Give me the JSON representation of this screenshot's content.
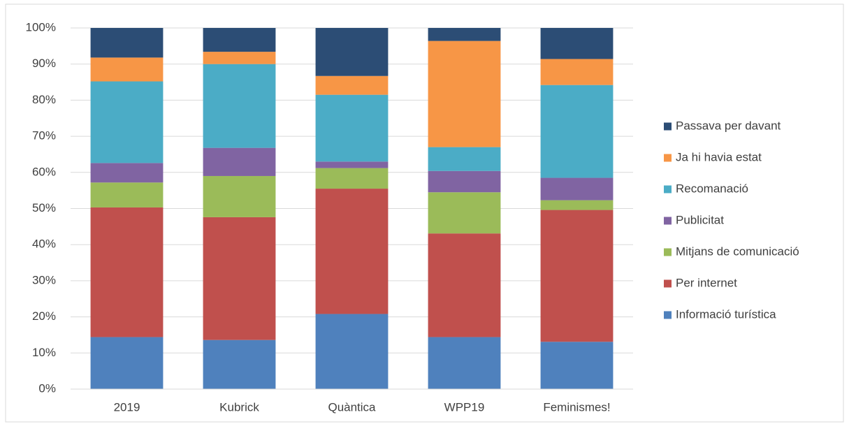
{
  "chart_data": {
    "type": "stacked_bar",
    "categories": [
      "2019",
      "Kubrick",
      "Quàntica",
      "WPP19",
      "Feminismes!"
    ],
    "series": [
      {
        "name": "Informació turística",
        "color": "#4f81bd",
        "values": [
          14.4,
          13.6,
          20.8,
          14.4,
          13.1
        ]
      },
      {
        "name": "Per internet",
        "color": "#c0504d",
        "values": [
          35.9,
          34.0,
          34.7,
          28.7,
          36.5
        ]
      },
      {
        "name": "Mitjans de comunicació",
        "color": "#9bbb59",
        "values": [
          6.9,
          11.4,
          5.7,
          11.4,
          2.7
        ]
      },
      {
        "name": "Publicitat",
        "color": "#8064a2",
        "values": [
          5.4,
          7.8,
          1.8,
          5.9,
          6.2
        ]
      },
      {
        "name": "Recomanació",
        "color": "#4bacc6",
        "values": [
          22.6,
          23.2,
          18.5,
          6.6,
          25.7
        ]
      },
      {
        "name": "Ja hi havia estat",
        "color": "#f79646",
        "values": [
          6.6,
          3.4,
          5.2,
          29.4,
          7.2
        ]
      },
      {
        "name": "Passava per davant",
        "color": "#2c4d75",
        "values": [
          8.2,
          6.6,
          13.3,
          3.6,
          8.6
        ]
      }
    ],
    "ylim": [
      0,
      100
    ],
    "yticks": [
      {
        "value": 0,
        "label": "0%"
      },
      {
        "value": 10,
        "label": "10%"
      },
      {
        "value": 20,
        "label": "20%"
      },
      {
        "value": 30,
        "label": "30%"
      },
      {
        "value": 40,
        "label": "40%"
      },
      {
        "value": 50,
        "label": "50%"
      },
      {
        "value": 60,
        "label": "60%"
      },
      {
        "value": 70,
        "label": "70%"
      },
      {
        "value": 80,
        "label": "80%"
      },
      {
        "value": 90,
        "label": "90%"
      },
      {
        "value": 100,
        "label": "100%"
      }
    ],
    "grid": true,
    "legend": "right"
  }
}
